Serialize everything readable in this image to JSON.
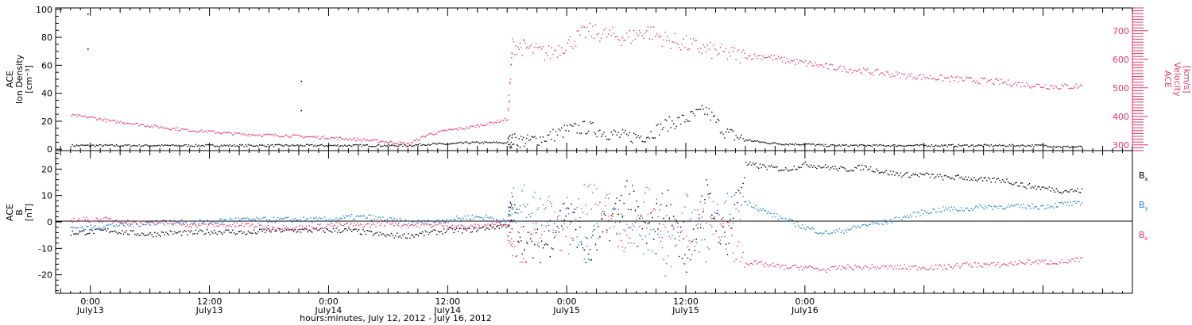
{
  "chart_data": [
    {
      "type": "scatter",
      "panel": "top",
      "left_axis": {
        "label_lines": [
          "ACE",
          "Ion Density",
          "[cm⁻³]"
        ],
        "ticks": [
          0,
          20,
          40,
          60,
          80,
          100
        ],
        "tick_labels": [
          "0",
          "20",
          "40",
          "60",
          "80",
          "100"
        ],
        "range": [
          -1,
          101
        ],
        "color": "#000000"
      },
      "right_axis": {
        "label_lines": [
          "ACE",
          "Velocity",
          "[km/s]"
        ],
        "ticks": [
          300,
          400,
          500,
          600,
          700
        ],
        "tick_labels": [
          "300",
          "400",
          "500",
          "600",
          "700"
        ],
        "range": [
          280,
          780
        ],
        "color": "#e8336a"
      },
      "series": [
        {
          "color": "#000000",
          "axis": "left",
          "x": [
            -2,
            0,
            2,
            4,
            6,
            8,
            10,
            12,
            14,
            16,
            18,
            20,
            22,
            24,
            26,
            28,
            30,
            32,
            34,
            36,
            38,
            40,
            42,
            42.5,
            44,
            46,
            48,
            50,
            52,
            54,
            56,
            58,
            60,
            62,
            64,
            66,
            68,
            70,
            72,
            74,
            76,
            78,
            80,
            82,
            84,
            86,
            88,
            90,
            92,
            94,
            96,
            98,
            100
          ],
          "y": [
            3,
            3,
            3,
            3,
            3,
            3,
            3,
            3,
            3,
            3,
            3,
            3,
            3,
            3,
            3,
            3,
            3,
            3,
            4,
            4,
            5,
            5,
            5,
            7,
            6,
            9,
            14,
            16,
            12,
            9,
            10,
            18,
            22,
            28,
            12,
            7,
            5,
            4,
            4,
            3,
            3,
            3,
            3,
            3,
            3,
            3,
            3,
            3,
            3,
            3,
            3,
            2,
            2
          ]
        },
        {
          "color": "#e8336a",
          "axis": "right",
          "x": [
            -2,
            0,
            2,
            4,
            6,
            8,
            10,
            12,
            14,
            16,
            18,
            20,
            22,
            24,
            26,
            28,
            30,
            32,
            34,
            36,
            38,
            40,
            42,
            42.5,
            44,
            46,
            48,
            50,
            52,
            54,
            56,
            58,
            60,
            62,
            64,
            66,
            68,
            70,
            72,
            74,
            76,
            78,
            80,
            82,
            84,
            86,
            88,
            90,
            92,
            94,
            96,
            98,
            100
          ],
          "y": [
            405,
            398,
            385,
            378,
            368,
            360,
            353,
            348,
            342,
            338,
            336,
            334,
            330,
            327,
            323,
            318,
            312,
            305,
            338,
            353,
            362,
            376,
            392,
            650,
            640,
            620,
            655,
            700,
            688,
            675,
            702,
            670,
            655,
            635,
            622,
            612,
            612,
            598,
            588,
            577,
            568,
            560,
            552,
            545,
            540,
            535,
            530,
            526,
            520,
            514,
            508,
            506,
            508
          ]
        }
      ],
      "scattered_points": [
        {
          "x": -0.3,
          "y": 97
        },
        {
          "x": -0.3,
          "y": 72
        },
        {
          "x": 21.2,
          "y": 49
        },
        {
          "x": 21.2,
          "y": 28
        }
      ]
    },
    {
      "type": "scatter",
      "panel": "bottom",
      "left_axis": {
        "label_lines": [
          "ACE",
          "B",
          "[nT]"
        ],
        "ticks": [
          -20,
          -10,
          0,
          10,
          20
        ],
        "tick_labels": [
          "-20",
          "-10",
          "0",
          "10",
          "20"
        ],
        "range": [
          -27,
          27
        ],
        "color": "#000000"
      },
      "series": [
        {
          "name": "B",
          "subscript": "x",
          "color": "#000000",
          "x": [
            -2,
            0,
            2,
            4,
            6,
            8,
            10,
            12,
            14,
            16,
            18,
            20,
            22,
            24,
            26,
            28,
            30,
            32,
            34,
            36,
            38,
            40,
            42,
            42.5,
            44,
            46,
            48,
            50,
            52,
            54,
            56,
            58,
            60,
            62,
            64,
            66,
            68,
            70,
            72,
            74,
            76,
            78,
            80,
            82,
            84,
            86,
            88,
            90,
            92,
            94,
            96,
            98,
            100
          ],
          "y": [
            -4,
            -3.5,
            -3,
            -4,
            -4.5,
            -4,
            -4,
            -3.5,
            -3.5,
            -4,
            -3,
            -3,
            -3,
            -3,
            -3,
            -4,
            -5,
            -5,
            -4,
            -3,
            -3,
            -2,
            -1,
            4,
            -10,
            -8,
            6,
            -12,
            -2,
            12,
            -5,
            8,
            -14,
            10,
            -8,
            22,
            21,
            20,
            22,
            21,
            20,
            21,
            19,
            18,
            18,
            17,
            17,
            16,
            16,
            14,
            13,
            12,
            12
          ]
        },
        {
          "name": "B",
          "subscript": "y",
          "color": "#1a80d9",
          "x": [
            -2,
            0,
            2,
            4,
            6,
            8,
            10,
            12,
            14,
            16,
            18,
            20,
            22,
            24,
            26,
            28,
            30,
            32,
            34,
            36,
            38,
            40,
            42,
            42.5,
            44,
            46,
            48,
            50,
            52,
            54,
            56,
            58,
            60,
            62,
            64,
            66,
            68,
            70,
            72,
            74,
            76,
            78,
            80,
            82,
            84,
            86,
            88,
            90,
            92,
            94,
            96,
            98,
            100
          ],
          "y": [
            -2,
            -2,
            -1,
            -1,
            0,
            0,
            0,
            0,
            1,
            1,
            1,
            1,
            1,
            1,
            2,
            2,
            1,
            0,
            0,
            1,
            2,
            2,
            0,
            6,
            8,
            2,
            4,
            -10,
            6,
            -3,
            -6,
            -14,
            6,
            -10,
            4,
            8,
            4,
            1,
            -2,
            -4,
            -3,
            -1,
            0,
            2,
            4,
            5,
            5,
            6,
            6,
            6,
            6,
            7,
            7
          ]
        },
        {
          "name": "B",
          "subscript": "z",
          "color": "#e8336a",
          "x": [
            -2,
            0,
            2,
            4,
            6,
            8,
            10,
            12,
            14,
            16,
            18,
            20,
            22,
            24,
            26,
            28,
            30,
            32,
            34,
            36,
            38,
            40,
            42,
            42.5,
            44,
            46,
            48,
            50,
            52,
            54,
            56,
            58,
            60,
            62,
            64,
            66,
            68,
            70,
            72,
            74,
            76,
            78,
            80,
            82,
            84,
            86,
            88,
            90,
            92,
            94,
            96,
            98,
            100
          ],
          "y": [
            1,
            1,
            1,
            0,
            0,
            0,
            -1,
            -1,
            -1,
            -1,
            -2,
            -2,
            -2,
            -1,
            -1,
            -1,
            0,
            -1,
            -1,
            -1,
            -2,
            -1,
            0,
            -6,
            -10,
            4,
            -8,
            10,
            2,
            -6,
            8,
            -2,
            -10,
            6,
            -4,
            -15,
            -16,
            -17,
            -17,
            -18,
            -17,
            -17,
            -17,
            -17,
            -17,
            -17,
            -16,
            -16,
            -16,
            -15,
            -15,
            -15,
            -14
          ]
        }
      ]
    }
  ],
  "x_axis": {
    "range_hours": [
      -3.5,
      105
    ],
    "ticks": [
      0,
      12,
      24,
      36,
      48,
      60,
      72
    ],
    "tick_time_labels": [
      "0:00",
      "12:00",
      "0:00",
      "12:00",
      "0:00",
      "12:00",
      "0:00"
    ],
    "tick_date_labels": [
      "July13",
      "July13",
      "July14",
      "July14",
      "July15",
      "July15",
      "July16"
    ],
    "label": "hours:minutes, July 12, 2012 - July 16, 2012"
  }
}
